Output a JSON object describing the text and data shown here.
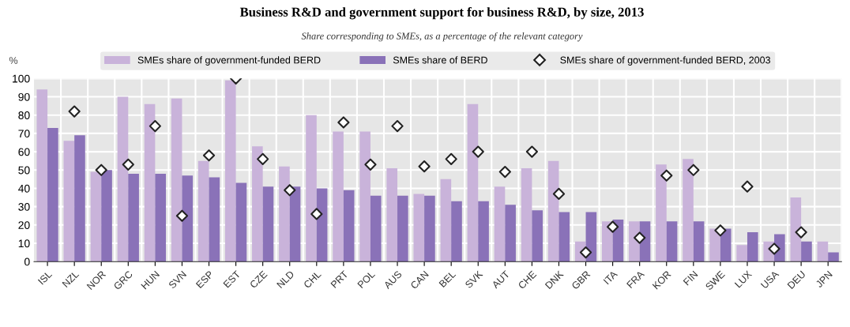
{
  "chart_data": {
    "type": "bar",
    "title": "Business R&D and government support for business R&D, by size, 2013",
    "subtitle": "Share corresponding to SMEs, as a percentage of the relevant category",
    "ylabel": "%",
    "categories": [
      "ISL",
      "NZL",
      "NOR",
      "GRC",
      "HUN",
      "SVN",
      "ESP",
      "EST",
      "CZE",
      "NLD",
      "CHL",
      "PRT",
      "POL",
      "AUS",
      "CAN",
      "BEL",
      "SVK",
      "AUT",
      "CHE",
      "DNK",
      "GBR",
      "ITA",
      "FRA",
      "KOR",
      "FIN",
      "SWE",
      "LUX",
      "USA",
      "DEU",
      "JPN"
    ],
    "series": [
      {
        "name": "SMEs share of government-funded BERD",
        "color": "#c9b3da",
        "values": [
          94,
          66,
          49,
          90,
          86,
          89,
          55,
          99,
          63,
          52,
          80,
          71,
          71,
          51,
          37,
          45,
          86,
          41,
          51,
          55,
          11,
          22,
          22,
          53,
          56,
          18,
          9,
          11,
          35,
          11
        ]
      },
      {
        "name": "SMEs share of BERD",
        "color": "#8a72b8",
        "values": [
          73,
          69,
          50,
          48,
          48,
          47,
          46,
          43,
          41,
          41,
          40,
          39,
          36,
          36,
          36,
          33,
          33,
          31,
          28,
          27,
          27,
          23,
          22,
          22,
          22,
          18,
          16,
          15,
          11,
          5
        ]
      },
      {
        "name": "SMEs share of government-funded BERD, 2003",
        "type": "scatter",
        "marker": "diamond",
        "color": "#ffffff",
        "values": [
          null,
          82,
          50,
          53,
          74,
          25,
          58,
          100,
          56,
          39,
          26,
          76,
          53,
          74,
          52,
          56,
          60,
          49,
          60,
          37,
          5,
          19,
          13,
          47,
          50,
          17,
          41,
          7,
          16,
          null
        ]
      }
    ],
    "ylim": [
      0,
      100
    ],
    "yticks": [
      0,
      10,
      20,
      30,
      40,
      50,
      60,
      70,
      80,
      90,
      100
    ],
    "grid": true,
    "legend": "top"
  }
}
